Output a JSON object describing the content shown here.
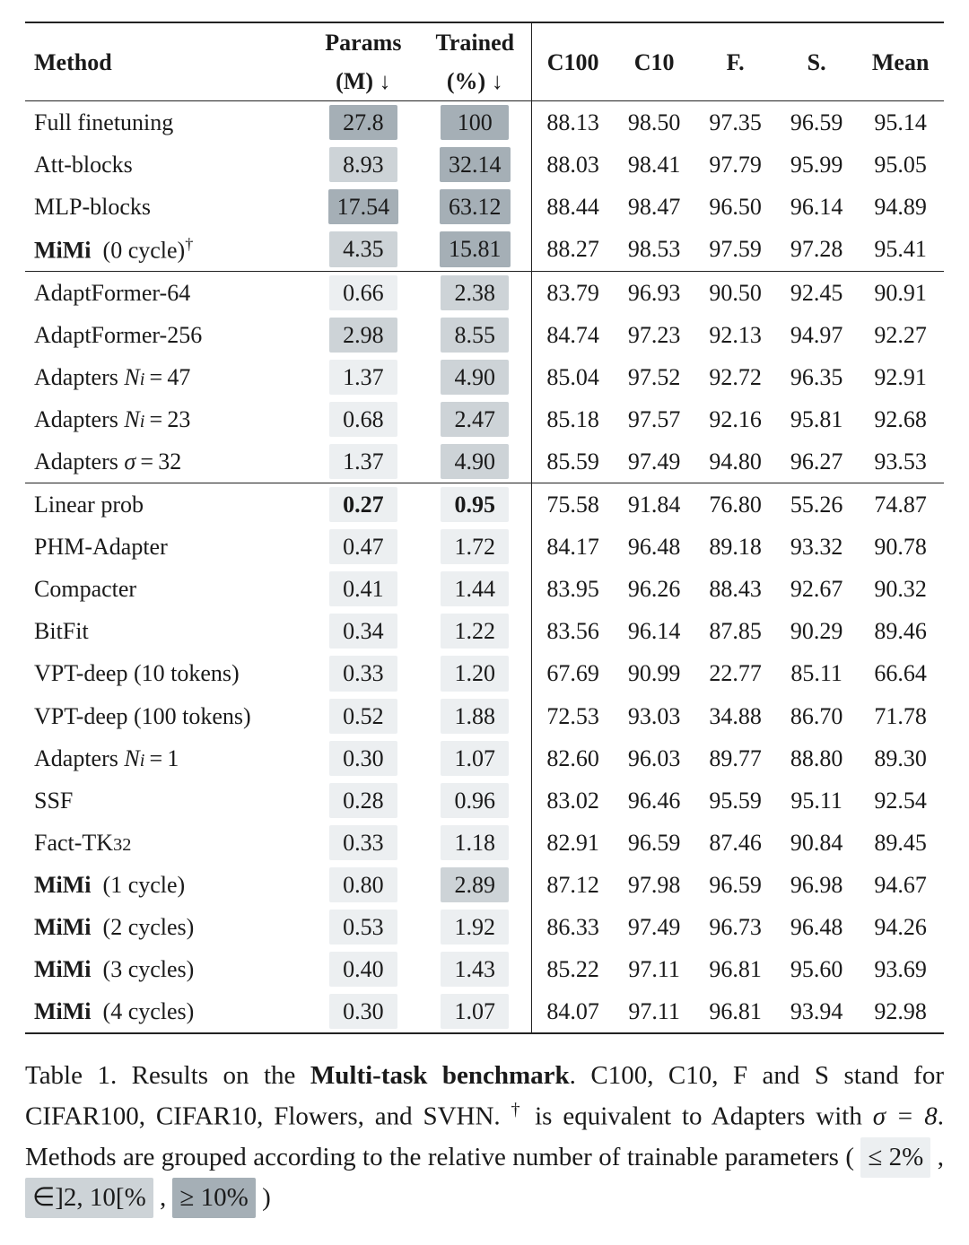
{
  "colors": {
    "shade_le2": "#eceff1",
    "shade_2to10": "#cdd3d7",
    "shade_ge10": "#a5afb6"
  },
  "header": {
    "method": "Method",
    "params": "Params",
    "params_sub": "(M) ↓",
    "trained": "Trained",
    "trained_sub": "(%) ↓",
    "c100": "C100",
    "c10": "C10",
    "f": "F.",
    "s": "S.",
    "mean": "Mean"
  },
  "groups": [
    {
      "rows": [
        {
          "method": "Full finetuning",
          "params": "27.8",
          "params_shade": "ge10",
          "trained": "100",
          "trained_shade": "ge10",
          "c100": "88.13",
          "c10": "98.50",
          "f": "97.35",
          "s": "96.59",
          "mean": "95.14"
        },
        {
          "method": "Att-blocks",
          "params": "8.93",
          "params_shade": "2to10",
          "trained": "32.14",
          "trained_shade": "ge10",
          "c100": "88.03",
          "c10": "98.41",
          "f": "97.79",
          "s": "95.99",
          "mean": "95.05"
        },
        {
          "method": "MLP-blocks",
          "params": "17.54",
          "params_shade": "ge10",
          "trained": "63.12",
          "trained_shade": "ge10",
          "c100": "88.44",
          "c10": "98.47",
          "f": "96.50",
          "s": "96.14",
          "mean": "94.89"
        },
        {
          "method_html": "<b>MiMi</b> &nbsp;(0 cycle)<span class='sup'>†</span>",
          "params": "4.35",
          "params_shade": "2to10",
          "trained": "15.81",
          "trained_shade": "ge10",
          "c100": "88.27",
          "c10": "98.53",
          "f": "97.59",
          "s": "97.28",
          "mean": "95.41",
          "mean_bold": true
        }
      ]
    },
    {
      "rows": [
        {
          "method": "AdaptFormer-64",
          "params": "0.66",
          "params_shade": "le2",
          "trained": "2.38",
          "trained_shade": "2to10",
          "c100": "83.79",
          "c10": "96.93",
          "f": "90.50",
          "s": "92.45",
          "mean": "90.91"
        },
        {
          "method": "AdaptFormer-256",
          "params": "2.98",
          "params_shade": "2to10",
          "trained": "8.55",
          "trained_shade": "2to10",
          "c100": "84.74",
          "c10": "97.23",
          "f": "92.13",
          "s": "94.97",
          "mean": "92.27"
        },
        {
          "method_html": "Adapters <span class='ital'>N<span class='sub'>i</span></span>&thinsp;=&thinsp;47",
          "params": "1.37",
          "params_shade": "le2",
          "trained": "4.90",
          "trained_shade": "2to10",
          "c100": "85.04",
          "c10": "97.52",
          "f": "92.72",
          "s": "96.35",
          "mean": "92.91"
        },
        {
          "method_html": "Adapters <span class='ital'>N<span class='sub'>i</span></span>&thinsp;=&thinsp;23",
          "params": "0.68",
          "params_shade": "le2",
          "trained": "2.47",
          "trained_shade": "2to10",
          "c100": "85.18",
          "c10": "97.57",
          "f": "92.16",
          "s": "95.81",
          "mean": "92.68"
        },
        {
          "method_html": "Adapters <span class='ital'>σ</span>&thinsp;=&thinsp;32",
          "params": "1.37",
          "params_shade": "le2",
          "trained": "4.90",
          "trained_shade": "2to10",
          "c100": "85.59",
          "c10": "97.49",
          "f": "94.80",
          "s": "96.27",
          "mean": "93.53"
        }
      ]
    },
    {
      "rows": [
        {
          "method": "Linear prob",
          "params": "0.27",
          "params_bold": true,
          "params_shade": "le2",
          "trained": "0.95",
          "trained_bold": true,
          "trained_shade": "le2",
          "c100": "75.58",
          "c10": "91.84",
          "f": "76.80",
          "s": "55.26",
          "mean": "74.87"
        },
        {
          "method": "PHM-Adapter",
          "params": "0.47",
          "params_shade": "le2",
          "trained": "1.72",
          "trained_shade": "le2",
          "c100": "84.17",
          "c10": "96.48",
          "f": "89.18",
          "s": "93.32",
          "mean": "90.78"
        },
        {
          "method": "Compacter",
          "params": "0.41",
          "params_shade": "le2",
          "trained": "1.44",
          "trained_shade": "le2",
          "c100": "83.95",
          "c10": "96.26",
          "f": "88.43",
          "s": "92.67",
          "mean": "90.32"
        },
        {
          "method": "BitFit",
          "params": "0.34",
          "params_shade": "le2",
          "trained": "1.22",
          "trained_shade": "le2",
          "c100": "83.56",
          "c10": "96.14",
          "f": "87.85",
          "s": "90.29",
          "mean": "89.46"
        },
        {
          "method": "VPT-deep (10 tokens)",
          "params": "0.33",
          "params_shade": "le2",
          "trained": "1.20",
          "trained_shade": "le2",
          "c100": "67.69",
          "c10": "90.99",
          "f": "22.77",
          "s": "85.11",
          "mean": "66.64"
        },
        {
          "method": "VPT-deep (100 tokens)",
          "params": "0.52",
          "params_shade": "le2",
          "trained": "1.88",
          "trained_shade": "le2",
          "c100": "72.53",
          "c10": "93.03",
          "f": "34.88",
          "s": "86.70",
          "mean": "71.78"
        },
        {
          "method_html": "Adapters <span class='ital'>N<span class='sub'>i</span></span>&thinsp;=&thinsp;1",
          "params": "0.30",
          "params_shade": "le2",
          "trained": "1.07",
          "trained_shade": "le2",
          "c100": "82.60",
          "c10": "96.03",
          "f": "89.77",
          "s": "88.80",
          "mean": "89.30"
        },
        {
          "method": "SSF",
          "params": "0.28",
          "params_shade": "le2",
          "trained": "0.96",
          "trained_shade": "le2",
          "c100": "83.02",
          "c10": "96.46",
          "f": "95.59",
          "s": "95.11",
          "mean": "92.54"
        },
        {
          "method_html": "Fact-TK<span class='sub'>32</span>",
          "params": "0.33",
          "params_shade": "le2",
          "trained": "1.18",
          "trained_shade": "le2",
          "c100": "82.91",
          "c10": "96.59",
          "f": "87.46",
          "s": "90.84",
          "mean": "89.45"
        },
        {
          "method_html": "<b>MiMi</b> &nbsp;(1 cycle)",
          "params": "0.80",
          "params_shade": "le2",
          "trained": "2.89",
          "trained_shade": "2to10",
          "c100": "87.12",
          "c10": "97.98",
          "f": "96.59",
          "s": "96.98",
          "mean": "94.67"
        },
        {
          "method_html": "<b>MiMi</b> &nbsp;(2 cycles)",
          "params": "0.53",
          "params_shade": "le2",
          "trained": "1.92",
          "trained_shade": "le2",
          "c100": "86.33",
          "c10": "97.49",
          "f": "96.73",
          "s": "96.48",
          "mean": "94.26"
        },
        {
          "method_html": "<b>MiMi</b> &nbsp;(3 cycles)",
          "params": "0.40",
          "params_shade": "le2",
          "trained": "1.43",
          "trained_shade": "le2",
          "c100": "85.22",
          "c10": "97.11",
          "f": "96.81",
          "s": "95.60",
          "mean": "93.69"
        },
        {
          "method_html": "<b>MiMi</b> &nbsp;(4 cycles)",
          "params": "0.30",
          "params_shade": "le2",
          "trained": "1.07",
          "trained_shade": "le2",
          "c100": "84.07",
          "c10": "97.11",
          "f": "96.81",
          "s": "93.94",
          "mean": "92.98"
        }
      ]
    }
  ],
  "caption": {
    "prefix": "Table 1.  Results on the ",
    "bold": "Multi-task benchmark",
    "body1": ". C100, C10, F and S stand for CIFAR100, CIFAR10, Flowers, and SVHN. ",
    "dagger_note": " is equivalent to Adapters with ",
    "sigma_eq": "σ = 8",
    "body2": ". Methods are grouped ac­cording to the relative number of trainable parameters ( ",
    "chip1": "≤ 2%",
    "sep1": " , ",
    "chip2": "∈]2, 10[%",
    "sep2": " , ",
    "chip3": "≥ 10%",
    "close": " )"
  }
}
